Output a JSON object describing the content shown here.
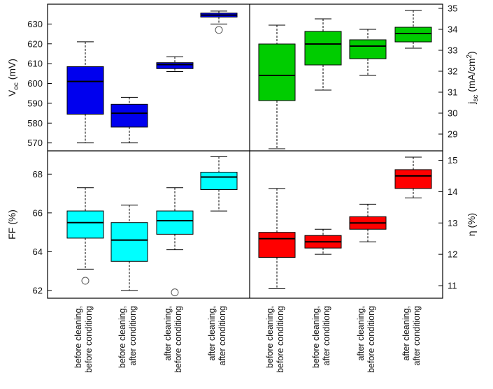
{
  "chart_data": [
    {
      "type": "box",
      "panel": "top-left",
      "ylabel_main": "V",
      "ylabel_sub": "oc",
      "ylabel_unit": " (mV)",
      "ylim": [
        566,
        640
      ],
      "yticks": [
        570,
        580,
        590,
        600,
        610,
        620,
        630
      ],
      "color": "#0000ee",
      "boxes": [
        {
          "low": 570,
          "q1": 584.5,
          "median": 601,
          "q3": 608.5,
          "high": 621,
          "outliers": []
        },
        {
          "low": 570,
          "q1": 578,
          "median": 585,
          "q3": 589.5,
          "high": 593,
          "outliers": []
        },
        {
          "low": 606,
          "q1": 607.5,
          "median": 609.5,
          "q3": 610.5,
          "high": 613.5,
          "outliers": []
        },
        {
          "low": 630,
          "q1": 633.5,
          "median": 634.5,
          "q3": 635.5,
          "high": 636.5,
          "outliers": [
            627
          ]
        }
      ]
    },
    {
      "type": "box",
      "panel": "top-right",
      "ylabel_main": "j",
      "ylabel_sub": "sc",
      "ylabel_unit": " (mA/cm",
      "ylabel_sup": "2",
      "ylabel_end": ")",
      "ylim": [
        28.2,
        35.2
      ],
      "yticks": [
        29,
        30,
        31,
        32,
        33,
        34,
        35
      ],
      "color": "#00cc00",
      "boxes": [
        {
          "low": 28.3,
          "q1": 30.6,
          "median": 31.8,
          "q3": 33.3,
          "high": 34.2,
          "outliers": []
        },
        {
          "low": 31.1,
          "q1": 32.3,
          "median": 33.3,
          "q3": 33.9,
          "high": 34.5,
          "outliers": []
        },
        {
          "low": 31.8,
          "q1": 32.6,
          "median": 33.2,
          "q3": 33.5,
          "high": 34.0,
          "outliers": []
        },
        {
          "low": 33.1,
          "q1": 33.4,
          "median": 33.8,
          "q3": 34.1,
          "high": 34.9,
          "outliers": []
        }
      ]
    },
    {
      "type": "box",
      "panel": "bottom-left",
      "ylabel_main": "FF",
      "ylabel_unit": " (%)",
      "ylim": [
        61.6,
        69.2
      ],
      "yticks": [
        62,
        64,
        66,
        68
      ],
      "color": "#00ffff",
      "boxes": [
        {
          "low": 63.1,
          "q1": 64.7,
          "median": 65.5,
          "q3": 66.1,
          "high": 67.3,
          "outliers": [
            62.5
          ]
        },
        {
          "low": 62.0,
          "q1": 63.5,
          "median": 64.6,
          "q3": 65.5,
          "high": 66.4,
          "outliers": []
        },
        {
          "low": 64.1,
          "q1": 64.9,
          "median": 65.6,
          "q3": 66.1,
          "high": 67.3,
          "outliers": [
            61.9
          ]
        },
        {
          "low": 66.1,
          "q1": 67.2,
          "median": 67.85,
          "q3": 68.1,
          "high": 68.9,
          "outliers": []
        }
      ]
    },
    {
      "type": "box",
      "panel": "bottom-right",
      "ylabel_main": "η",
      "ylabel_unit": " (%)",
      "ylim": [
        10.6,
        15.3
      ],
      "yticks": [
        11,
        12,
        13,
        14,
        15
      ],
      "color": "#ff0000",
      "boxes": [
        {
          "low": 10.9,
          "q1": 11.9,
          "median": 12.5,
          "q3": 12.7,
          "high": 14.1,
          "outliers": []
        },
        {
          "low": 12.0,
          "q1": 12.2,
          "median": 12.4,
          "q3": 12.6,
          "high": 12.8,
          "outliers": []
        },
        {
          "low": 12.4,
          "q1": 12.8,
          "median": 13.0,
          "q3": 13.2,
          "high": 13.6,
          "outliers": []
        },
        {
          "low": 13.8,
          "q1": 14.1,
          "median": 14.5,
          "q3": 14.7,
          "high": 15.1,
          "outliers": []
        }
      ]
    }
  ],
  "categories": [
    [
      "before cleaning,",
      "before conditiong"
    ],
    [
      "before cleaning,",
      "after conditiong"
    ],
    [
      "after cleaning,",
      "before conditiong"
    ],
    [
      "after cleaning,",
      "after conditiong"
    ]
  ]
}
